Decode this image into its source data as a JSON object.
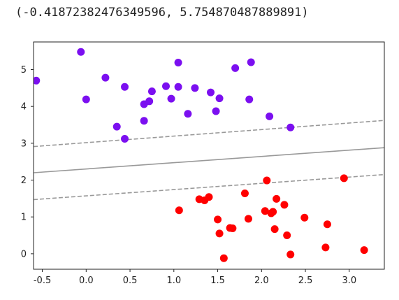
{
  "output_text": "(-0.41872382476349596, 5.754870487889891)",
  "colors": {
    "class0": "#7b0ff0",
    "class1": "#ff0000",
    "boundary": "#999999",
    "axes": "#222222"
  },
  "chart_data": {
    "type": "scatter",
    "xlim": [
      -0.6,
      3.4
    ],
    "ylim": [
      -0.42,
      5.75
    ],
    "xticks": [
      -0.5,
      0.0,
      0.5,
      1.0,
      1.5,
      2.0,
      2.5,
      3.0
    ],
    "xtick_labels": [
      "-0.5",
      "0.0",
      "0.5",
      "1.0",
      "1.5",
      "2.0",
      "2.5",
      "3.0"
    ],
    "yticks": [
      0,
      1,
      2,
      3,
      4,
      5
    ],
    "ytick_labels": [
      "0",
      "1",
      "2",
      "3",
      "4",
      "5"
    ],
    "grid": false,
    "series": [
      {
        "color": "#7b0ff0",
        "points": [
          [
            -0.57,
            4.7
          ],
          [
            -0.06,
            5.48
          ],
          [
            0.0,
            4.19
          ],
          [
            0.22,
            4.78
          ],
          [
            0.35,
            3.45
          ],
          [
            0.44,
            4.53
          ],
          [
            0.44,
            3.12
          ],
          [
            0.66,
            4.06
          ],
          [
            0.66,
            3.61
          ],
          [
            0.72,
            4.14
          ],
          [
            0.75,
            4.41
          ],
          [
            0.91,
            4.55
          ],
          [
            0.97,
            4.21
          ],
          [
            1.05,
            5.19
          ],
          [
            1.05,
            4.53
          ],
          [
            1.16,
            3.8
          ],
          [
            1.24,
            4.5
          ],
          [
            1.42,
            4.38
          ],
          [
            1.48,
            3.87
          ],
          [
            1.52,
            4.22
          ],
          [
            1.7,
            5.04
          ],
          [
            1.86,
            4.19
          ],
          [
            1.88,
            5.2
          ],
          [
            2.09,
            3.73
          ],
          [
            2.33,
            3.43
          ]
        ]
      },
      {
        "color": "#ff0000",
        "points": [
          [
            1.06,
            1.18
          ],
          [
            1.29,
            1.48
          ],
          [
            1.35,
            1.45
          ],
          [
            1.4,
            1.54
          ],
          [
            1.5,
            0.93
          ],
          [
            1.52,
            0.55
          ],
          [
            1.57,
            -0.12
          ],
          [
            1.64,
            0.7
          ],
          [
            1.67,
            0.69
          ],
          [
            1.81,
            1.64
          ],
          [
            1.85,
            0.95
          ],
          [
            2.04,
            1.16
          ],
          [
            2.06,
            1.99
          ],
          [
            2.11,
            1.1
          ],
          [
            2.13,
            1.14
          ],
          [
            2.15,
            0.67
          ],
          [
            2.17,
            1.49
          ],
          [
            2.26,
            1.33
          ],
          [
            2.29,
            0.5
          ],
          [
            2.33,
            -0.02
          ],
          [
            2.49,
            0.98
          ],
          [
            2.73,
            0.17
          ],
          [
            2.75,
            0.8
          ],
          [
            2.94,
            2.05
          ],
          [
            3.17,
            0.1
          ]
        ]
      }
    ],
    "lines": [
      {
        "style": "solid",
        "x": [
          -0.6,
          3.4
        ],
        "y": [
          2.2,
          2.88
        ]
      },
      {
        "style": "dashed",
        "x": [
          -0.6,
          3.4
        ],
        "y": [
          2.91,
          3.62
        ]
      },
      {
        "style": "dashed",
        "x": [
          -0.6,
          3.4
        ],
        "y": [
          1.47,
          2.15
        ]
      }
    ]
  }
}
